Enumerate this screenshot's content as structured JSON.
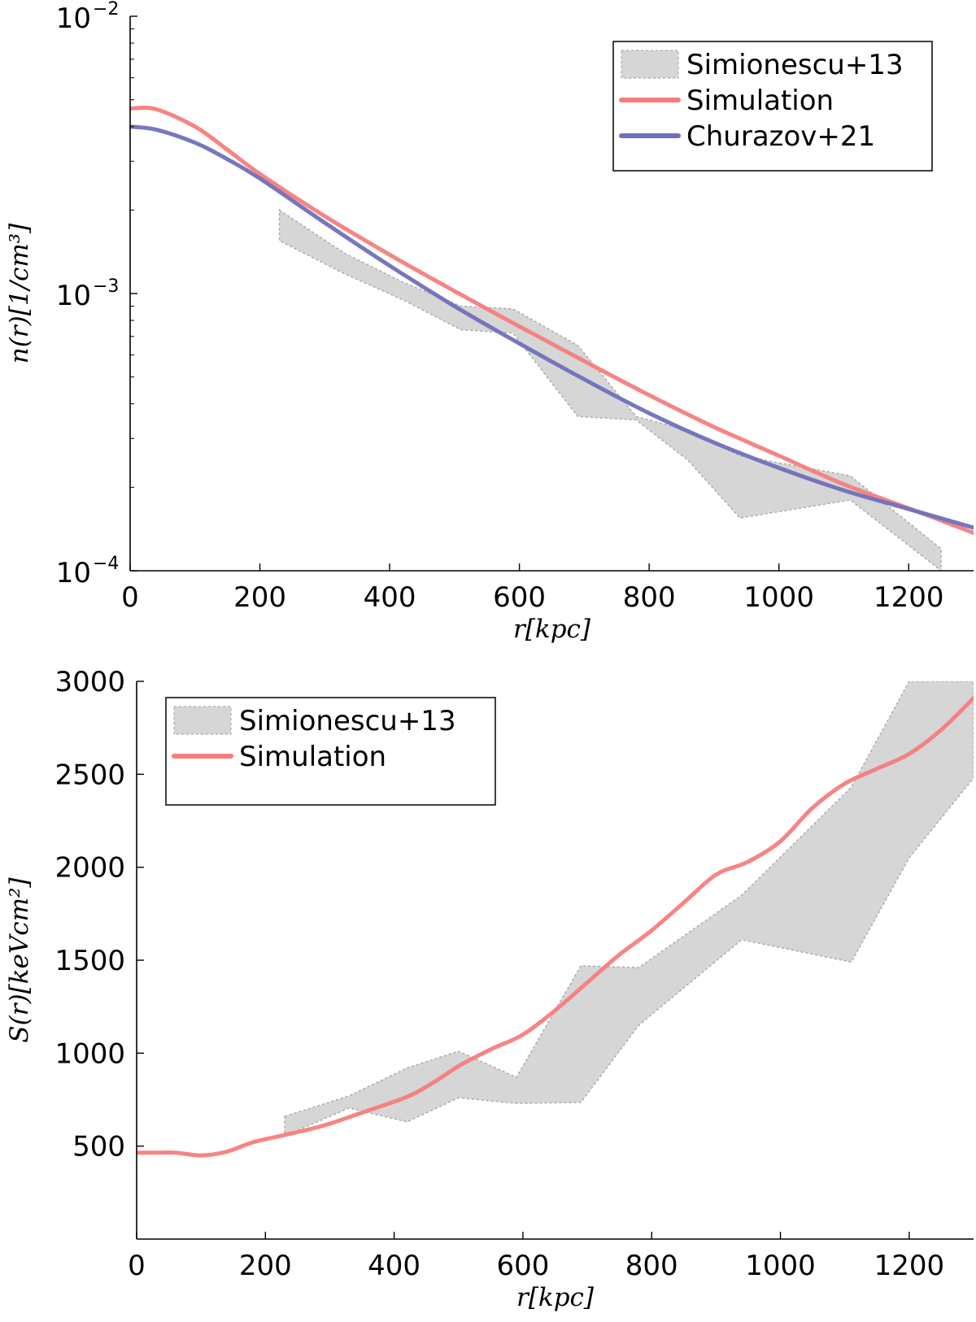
{
  "chart_data": [
    {
      "id": "density",
      "type": "line",
      "title": "",
      "xlabel": "r[kpc]",
      "ylabel": "n(r)[1/cm³]",
      "yscale": "log",
      "xlim": [
        0,
        1300
      ],
      "ylim": [
        0.0001,
        0.01
      ],
      "grid": false,
      "legend_position": "top-right",
      "xticks": [
        0,
        200,
        400,
        600,
        800,
        1000,
        1200
      ],
      "xtick_labels": [
        "0",
        "200",
        "400",
        "600",
        "800",
        "1000",
        "1200"
      ],
      "yticks": [
        0.0001,
        0.001,
        0.01
      ],
      "ytick_labels": [
        {
          "base": "10",
          "exp": "−4"
        },
        {
          "base": "10",
          "exp": "−3"
        },
        {
          "base": "10",
          "exp": "−2"
        }
      ],
      "band": {
        "name": "Simionescu+13",
        "color": "#d6d6d6",
        "edge_color": "#aaaaaa",
        "x": [
          230,
          330,
          420,
          510,
          590,
          690,
          780,
          860,
          940,
          1110,
          1250
        ],
        "upper": [
          0.002,
          0.0014,
          0.0011,
          0.0009,
          0.00088,
          0.00065,
          0.00036,
          0.00032,
          0.00026,
          0.00022,
          0.00012
        ],
        "lower": [
          0.00155,
          0.00118,
          0.00095,
          0.00074,
          0.00072,
          0.00036,
          0.00035,
          0.00025,
          0.000155,
          0.00018,
          0.0001
        ]
      },
      "series": [
        {
          "name": "Simulation",
          "color": "#f77d7d",
          "x": [
            0,
            40,
            100,
            150,
            200,
            300,
            400,
            500,
            600,
            700,
            800,
            900,
            1000,
            1100,
            1200,
            1300
          ],
          "y": [
            0.00465,
            0.00462,
            0.004,
            0.0033,
            0.0027,
            0.0019,
            0.00138,
            0.00102,
            0.00076,
            0.00057,
            0.00043,
            0.00033,
            0.00026,
            0.000205,
            0.000168,
            0.000137
          ]
        },
        {
          "name": "Churazov+21",
          "color": "#7070bb",
          "x": [
            0,
            40,
            100,
            150,
            200,
            300,
            400,
            500,
            600,
            700,
            800,
            900,
            1000,
            1100,
            1200,
            1300
          ],
          "y": [
            0.004,
            0.0039,
            0.0035,
            0.00305,
            0.0026,
            0.0018,
            0.00126,
            0.0009,
            0.00066,
            0.00049,
            0.00037,
            0.00029,
            0.000235,
            0.000195,
            0.000167,
            0.000143
          ]
        }
      ]
    },
    {
      "id": "entropy",
      "type": "line",
      "title": "",
      "xlabel": "r[kpc]",
      "ylabel": "S(r)[keVcm²]",
      "yscale": "linear",
      "xlim": [
        0,
        1300
      ],
      "ylim": [
        0,
        3000
      ],
      "grid": false,
      "legend_position": "top-left",
      "xticks": [
        0,
        200,
        400,
        600,
        800,
        1000,
        1200
      ],
      "xtick_labels": [
        "0",
        "200",
        "400",
        "600",
        "800",
        "1000",
        "1200"
      ],
      "yticks": [
        500,
        1000,
        1500,
        2000,
        2500,
        3000
      ],
      "ytick_labels": [
        "500",
        "1000",
        "1500",
        "2000",
        "2500",
        "3000"
      ],
      "band": {
        "name": "Simionescu+13",
        "color": "#d6d6d6",
        "edge_color": "#aaaaaa",
        "x": [
          230,
          330,
          420,
          500,
          590,
          690,
          780,
          940,
          1110,
          1200,
          1300
        ],
        "upper": [
          660,
          770,
          920,
          1010,
          870,
          1470,
          1460,
          1850,
          2430,
          3000,
          3000
        ],
        "lower": [
          555,
          705,
          630,
          760,
          730,
          735,
          1150,
          1610,
          1490,
          2050,
          2480
        ]
      },
      "series": [
        {
          "name": "Simulation",
          "color": "#f77d7d",
          "x": [
            0,
            30,
            60,
            100,
            140,
            180,
            230,
            290,
            350,
            420,
            460,
            500,
            550,
            600,
            650,
            700,
            750,
            800,
            850,
            900,
            950,
            1000,
            1050,
            1100,
            1150,
            1200,
            1250,
            1300
          ],
          "y": [
            465,
            465,
            465,
            450,
            470,
            520,
            560,
            610,
            680,
            765,
            840,
            930,
            1020,
            1100,
            1230,
            1380,
            1530,
            1660,
            1810,
            1960,
            2030,
            2140,
            2320,
            2450,
            2530,
            2610,
            2740,
            2910
          ]
        }
      ]
    }
  ]
}
